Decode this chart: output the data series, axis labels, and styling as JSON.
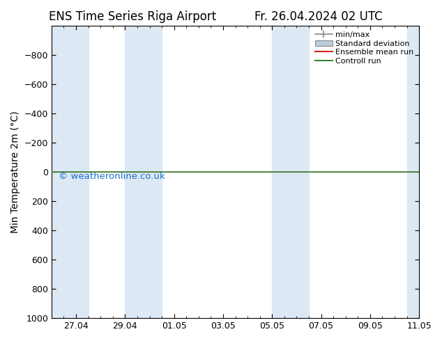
{
  "title_left": "ENS Time Series Riga Airport",
  "title_right": "Fr. 26.04.2024 02 UTC",
  "ylabel": "Min Temperature 2m (°C)",
  "ylim": [
    -1000,
    1000
  ],
  "yticks": [
    -800,
    -600,
    -400,
    -200,
    0,
    200,
    400,
    600,
    800,
    1000
  ],
  "xtick_labels": [
    "27.04",
    "29.04",
    "01.05",
    "03.05",
    "05.05",
    "07.05",
    "09.05",
    "11.05"
  ],
  "xtick_positions": [
    1,
    3,
    5,
    7,
    9,
    11,
    13,
    15
  ],
  "xlim": [
    0,
    15
  ],
  "watermark": "© weatheronline.co.uk",
  "watermark_color": "#1a6fcc",
  "background_color": "#ffffff",
  "plot_bg_color": "#ffffff",
  "shaded_ranges": [
    [
      0,
      1.5
    ],
    [
      3,
      4.5
    ],
    [
      9,
      10.5
    ],
    [
      14.5,
      15
    ]
  ],
  "shaded_color": "#dce9f5",
  "control_run_y": 0,
  "control_run_color": "#338833",
  "ensemble_mean_color": "#dd2222",
  "legend_labels": [
    "min/max",
    "Standard deviation",
    "Ensemble mean run",
    "Controll run"
  ],
  "legend_minmax_color": "#888888",
  "legend_stddev_color": "#bbccdd",
  "title_fontsize": 12,
  "axis_fontsize": 10,
  "tick_fontsize": 9
}
